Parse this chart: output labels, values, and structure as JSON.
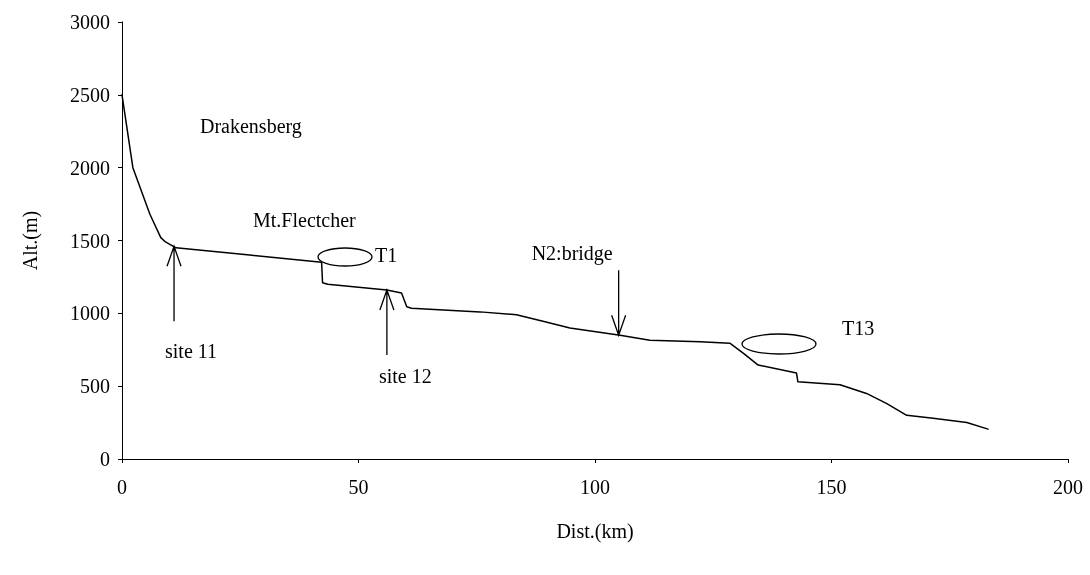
{
  "chart_data": {
    "type": "line",
    "xlabel": "Dist.(km)",
    "ylabel": "Alt.(m)",
    "x": [
      0,
      2.3,
      5.9,
      8.2,
      9.2,
      11.4,
      27,
      42.2,
      42.4,
      43.5,
      56,
      59.1,
      60.2,
      61.2,
      75.7,
      83.4,
      89,
      94.7,
      105.3,
      111.6,
      122.2,
      128.5,
      131.4,
      134.5,
      142.6,
      142.9,
      151.8,
      157.4,
      161.7,
      165.9,
      171.5,
      178.6,
      183.1
    ],
    "series": [
      {
        "color": "#000000",
        "values": [
          2500,
          2000,
          1680,
          1520,
          1490,
          1450,
          1400,
          1350,
          1210,
          1200,
          1160,
          1140,
          1045,
          1035,
          1010,
          990,
          945,
          900,
          850,
          815,
          805,
          795,
          725,
          645,
          590,
          530,
          510,
          450,
          380,
          300,
          280,
          250,
          205
        ]
      }
    ],
    "xlim": [
      0,
      200
    ],
    "xticks": [
      0,
      50,
      100,
      150,
      200
    ],
    "ylim": [
      0,
      3000
    ],
    "yticks": [
      0,
      500,
      1000,
      1500,
      2000,
      2500,
      3000
    ],
    "grid": false,
    "marker": "none",
    "line_style": "solid",
    "annotations": [
      "Drakensberg",
      "Mt.Flectcher",
      {
        "text": "site 11",
        "x": 11,
        "y": 1460
      },
      {
        "text": "site 12",
        "x": 56,
        "y": 1160
      },
      {
        "text": "N2:bridge",
        "x": 105,
        "y": 850
      },
      "T1",
      "T13"
    ]
  }
}
